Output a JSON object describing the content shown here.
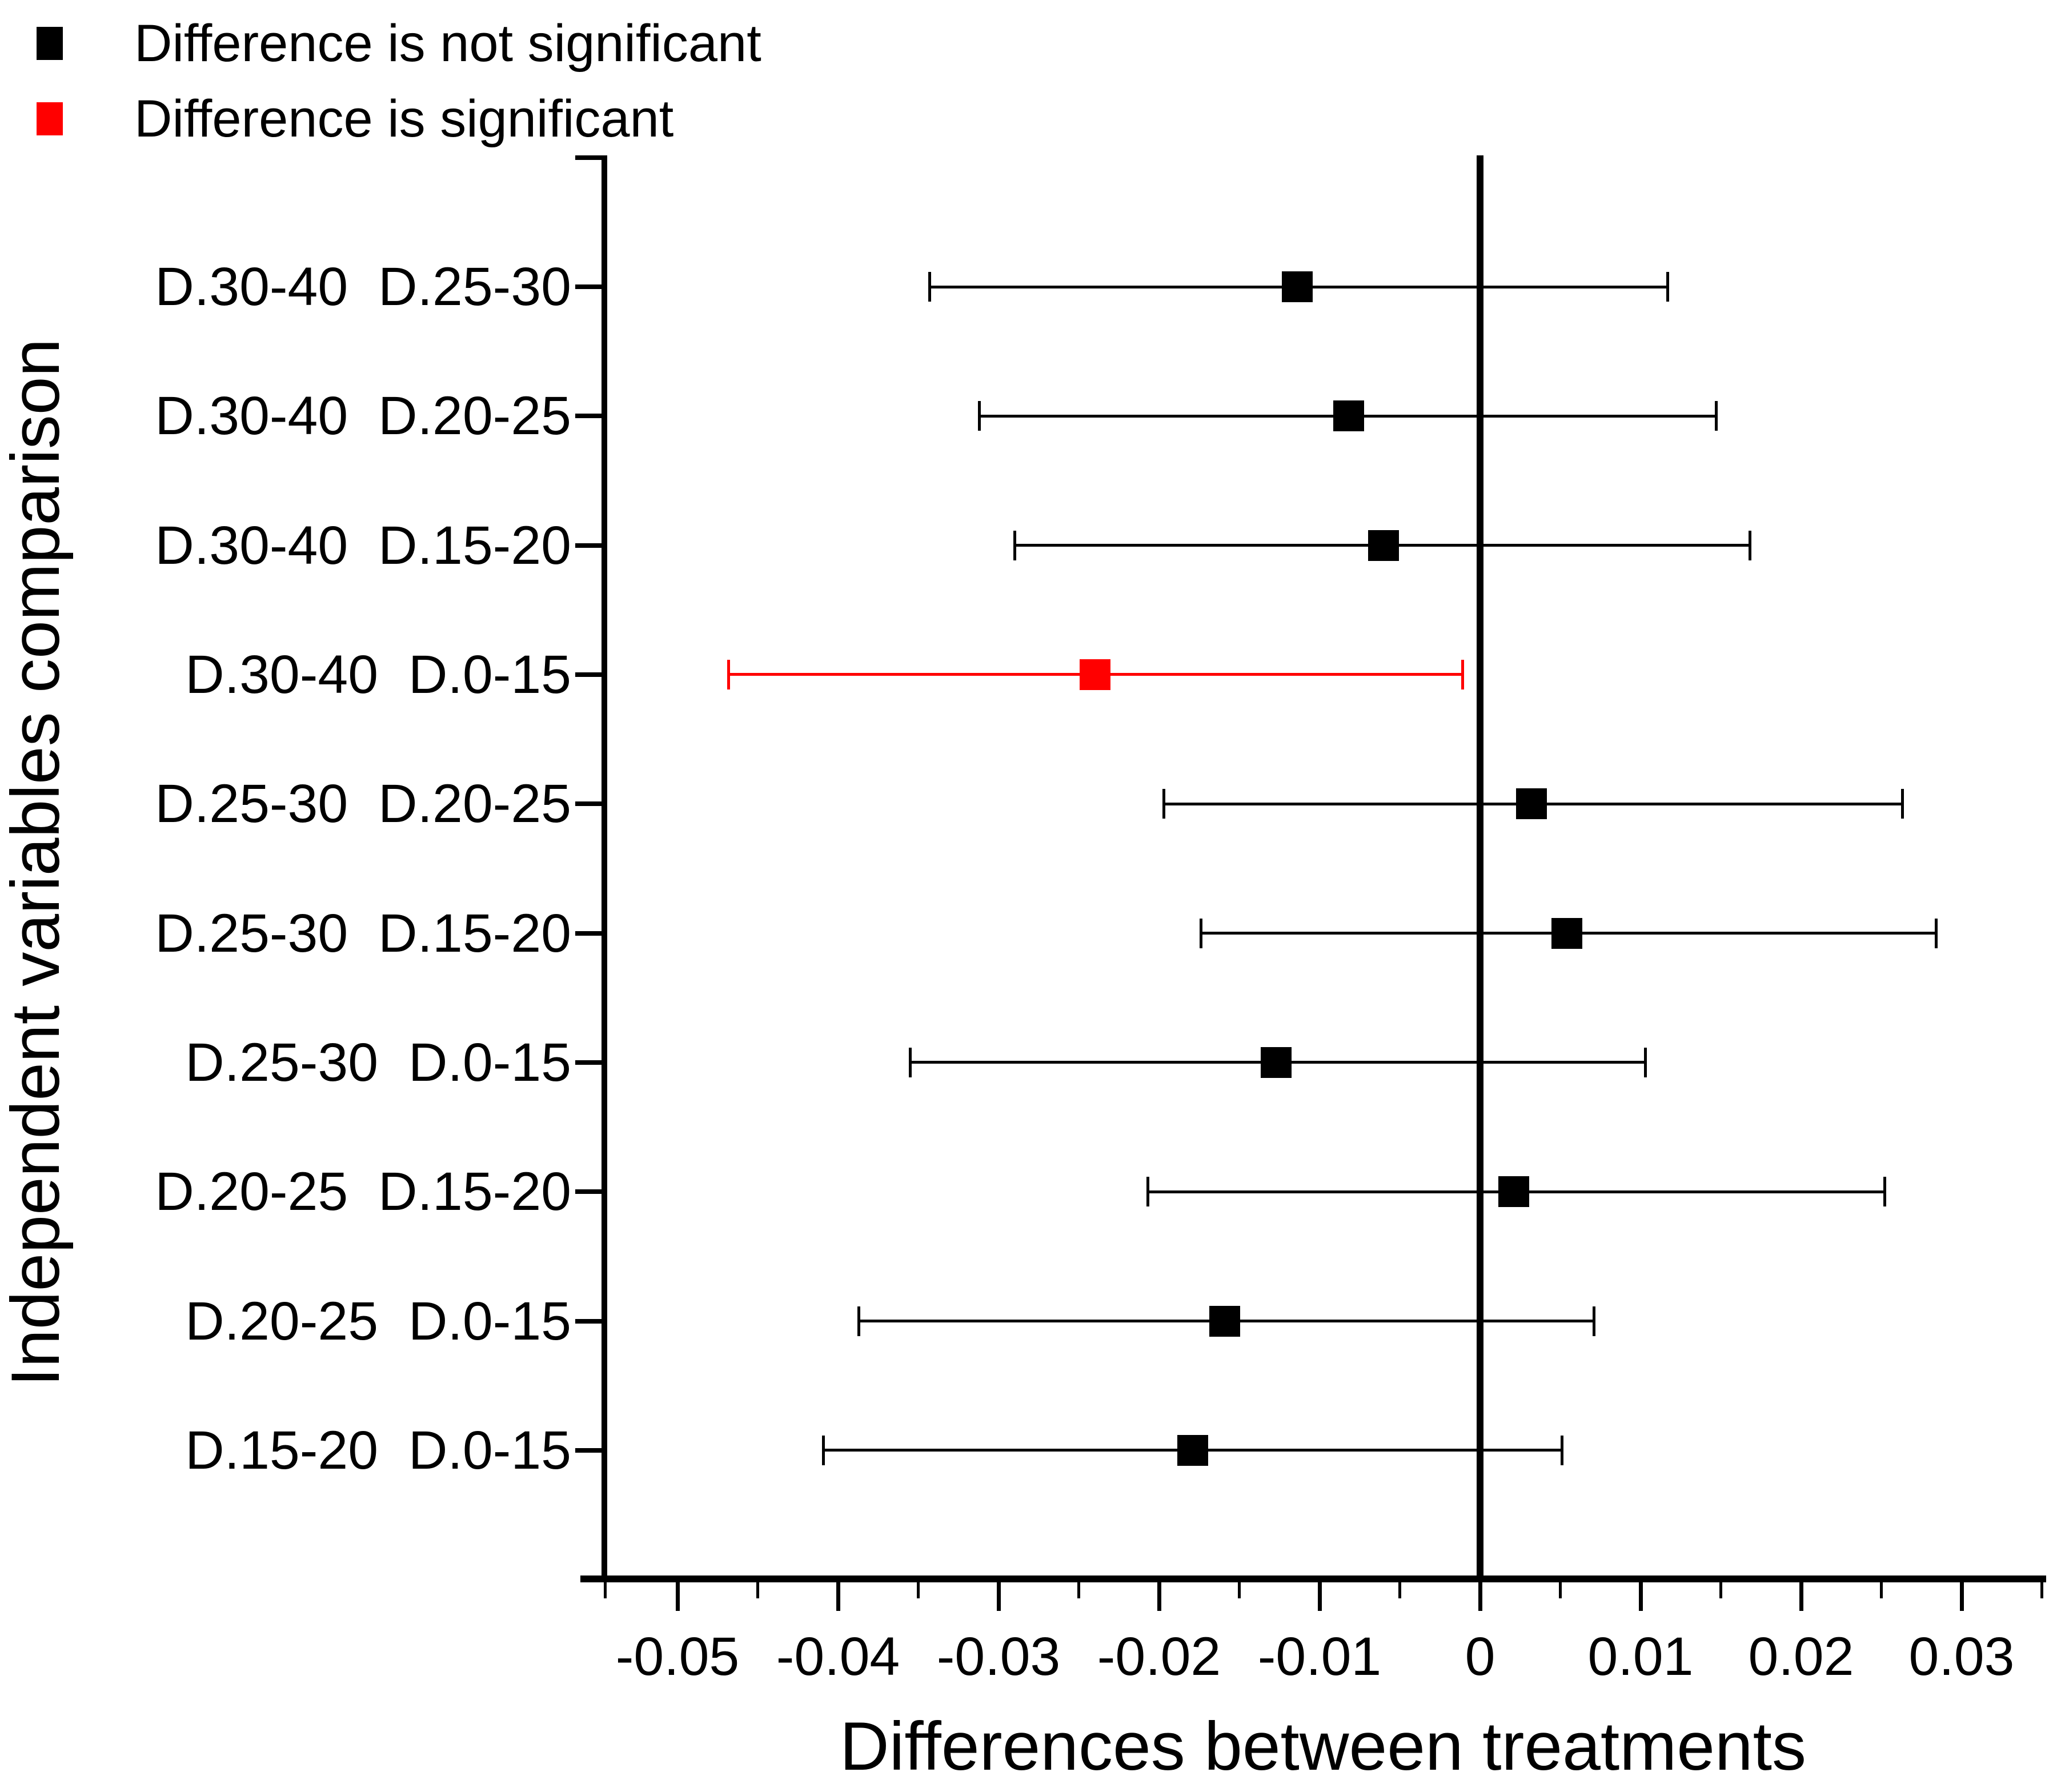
{
  "chart_data": {
    "type": "errorbar",
    "title": "",
    "xlabel": "Differences between treatments",
    "ylabel": "Independent variables comparison",
    "legend": [
      {
        "label": "Difference is not significant",
        "color": "#000000"
      },
      {
        "label": "Difference is significant",
        "color": "#ff0000"
      }
    ],
    "x_axis": {
      "range": [
        -0.0548,
        0.035
      ],
      "major_tick_values": [
        -0.05,
        -0.04,
        -0.03,
        -0.02,
        -0.01,
        0,
        0.01,
        0.02,
        0.03
      ],
      "major_tick_labels": [
        "-0.05",
        "-0.04",
        "-0.03",
        "-0.02",
        "-0.01",
        "0",
        "0.01",
        "0.02",
        "0.03"
      ],
      "minor_tick_values": [
        -0.0545,
        -0.045,
        -0.035,
        -0.025,
        -0.015,
        -0.005,
        0.005,
        0.015,
        0.025,
        0.035
      ],
      "zero_reference_line": 0
    },
    "categories": [
      [
        "D.30-40",
        "D.25-30"
      ],
      [
        "D.30-40",
        "D.20-25"
      ],
      [
        "D.30-40",
        "D.15-20"
      ],
      [
        "D.30-40",
        "D.0-15"
      ],
      [
        "D.25-30",
        "D.20-25"
      ],
      [
        "D.25-30",
        "D.15-20"
      ],
      [
        "D.25-30",
        "D.0-15"
      ],
      [
        "D.20-25",
        "D.15-20"
      ],
      [
        "D.20-25",
        "D.0-15"
      ],
      [
        "D.15-20",
        "D.0-15"
      ]
    ],
    "points": [
      {
        "center": -0.0114,
        "low": -0.0343,
        "high": 0.0117,
        "significant": false
      },
      {
        "center": -0.0082,
        "low": -0.0312,
        "high": 0.0147,
        "significant": false
      },
      {
        "center": -0.006,
        "low": -0.029,
        "high": 0.0168,
        "significant": false
      },
      {
        "center": -0.024,
        "low": -0.0468,
        "high": -0.0011,
        "significant": true
      },
      {
        "center": 0.0032,
        "low": -0.0197,
        "high": 0.0263,
        "significant": false
      },
      {
        "center": 0.0054,
        "low": -0.0174,
        "high": 0.0284,
        "significant": false
      },
      {
        "center": -0.0127,
        "low": -0.0355,
        "high": 0.0103,
        "significant": false
      },
      {
        "center": 0.0021,
        "low": -0.0207,
        "high": 0.0252,
        "significant": false
      },
      {
        "center": -0.0159,
        "low": -0.0387,
        "high": 0.0071,
        "significant": false
      },
      {
        "center": -0.0179,
        "low": -0.0409,
        "high": 0.0051,
        "significant": false
      }
    ],
    "colors": {
      "not_significant": "#000000",
      "significant": "#ff0000",
      "axis": "#000000",
      "background": "#ffffff"
    }
  }
}
